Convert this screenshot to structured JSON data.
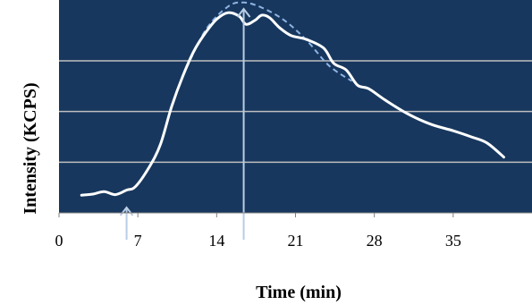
{
  "chart_data": {
    "type": "line",
    "title": "",
    "xlabel": "Time (min)",
    "ylabel": "Intensity (KCPS)",
    "xlim": [
      0,
      42
    ],
    "ylim": [
      0,
      4.2
    ],
    "x_ticks": [
      0,
      7,
      14,
      21,
      28,
      35
    ],
    "y_ticks_labeled": [],
    "grid": "horizontal",
    "y_gridlines": [
      1,
      2,
      3
    ],
    "colors": {
      "plot_background": "#17375e",
      "gridline": "#bfbfbf",
      "series_line": "#ffffff",
      "envelope_line": "#8eb4e3",
      "marker_arrow": "#b9cde5"
    },
    "series": [
      {
        "x": [
          2.0,
          3.0,
          4.0,
          5.0,
          6.0,
          6.8,
          8.0,
          9.0,
          10.0,
          11.0,
          12.0,
          13.0,
          14.0,
          15.0,
          16.0,
          16.6,
          17.4,
          18.0,
          18.7,
          19.6,
          20.6,
          22.0,
          23.5,
          24.4,
          25.5,
          26.5,
          27.5,
          29.0,
          31.0,
          33.0,
          35.0,
          36.6,
          38.0,
          39.5
        ],
        "y": [
          0.35,
          0.37,
          0.42,
          0.36,
          0.45,
          0.52,
          0.9,
          1.35,
          2.1,
          2.7,
          3.2,
          3.55,
          3.82,
          3.95,
          3.88,
          3.72,
          3.8,
          3.9,
          3.85,
          3.65,
          3.5,
          3.42,
          3.25,
          2.95,
          2.82,
          2.52,
          2.45,
          2.22,
          1.95,
          1.75,
          1.62,
          1.5,
          1.38,
          1.1
        ]
      }
    ],
    "envelope": {
      "x": [
        11.0,
        13.0,
        15.0,
        16.4,
        18.0,
        20.0,
        22.0,
        24.0,
        26.0
      ],
      "y": [
        2.7,
        3.6,
        4.07,
        4.15,
        4.05,
        3.8,
        3.4,
        2.9,
        2.6
      ]
    },
    "marker_arrows": [
      {
        "x": 6.0
      },
      {
        "x": 16.4
      }
    ]
  }
}
